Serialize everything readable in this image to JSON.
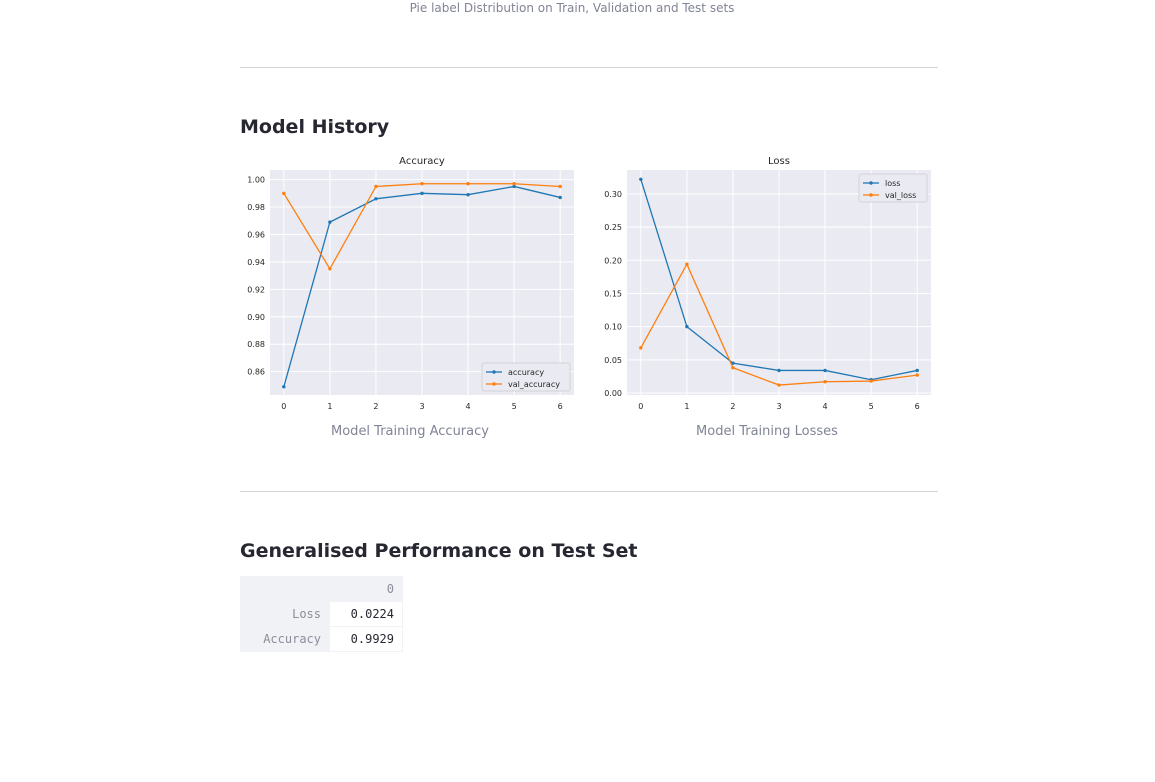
{
  "top_caption": "Pie label Distribution on Train, Validation and Test sets",
  "model_history": {
    "heading": "Model History",
    "accuracy_caption": "Model Training Accuracy",
    "loss_caption": "Model Training Losses"
  },
  "performance": {
    "heading": "Generalised Performance on Test Set",
    "column": "0",
    "rows": [
      {
        "label": "Loss",
        "value": "0.0224"
      },
      {
        "label": "Accuracy",
        "value": "0.9929"
      }
    ]
  },
  "colors": {
    "series1": "#1f77b4",
    "series2": "#ff7f0e",
    "plot_bg": "#eaeaf2"
  },
  "chart_data": [
    {
      "type": "line",
      "title": "Accuracy",
      "x": [
        0,
        1,
        2,
        3,
        4,
        5,
        6
      ],
      "ylim": [
        0.843,
        1.007
      ],
      "yticks": [
        "0.86",
        "0.88",
        "0.90",
        "0.92",
        "0.94",
        "0.96",
        "0.98",
        "1.00"
      ],
      "ytick_values": [
        0.86,
        0.88,
        0.9,
        0.92,
        0.94,
        0.96,
        0.98,
        1.0
      ],
      "grid": true,
      "legend": "lower-right",
      "series": [
        {
          "name": "accuracy",
          "values": [
            0.849,
            0.969,
            0.986,
            0.99,
            0.989,
            0.995,
            0.987
          ]
        },
        {
          "name": "val_accuracy",
          "values": [
            0.99,
            0.935,
            0.995,
            0.997,
            0.997,
            0.997,
            0.995
          ]
        }
      ]
    },
    {
      "type": "line",
      "title": "Loss",
      "x": [
        0,
        1,
        2,
        3,
        4,
        5,
        6
      ],
      "ylim": [
        -0.003,
        0.336
      ],
      "yticks": [
        "0.00",
        "0.05",
        "0.10",
        "0.15",
        "0.20",
        "0.25",
        "0.30"
      ],
      "ytick_values": [
        0.0,
        0.05,
        0.1,
        0.15,
        0.2,
        0.25,
        0.3
      ],
      "grid": true,
      "legend": "upper-right",
      "series": [
        {
          "name": "loss",
          "values": [
            0.322,
            0.1,
            0.045,
            0.034,
            0.034,
            0.02,
            0.034
          ]
        },
        {
          "name": "val_loss",
          "values": [
            0.068,
            0.194,
            0.038,
            0.012,
            0.017,
            0.018,
            0.027
          ]
        }
      ]
    }
  ]
}
